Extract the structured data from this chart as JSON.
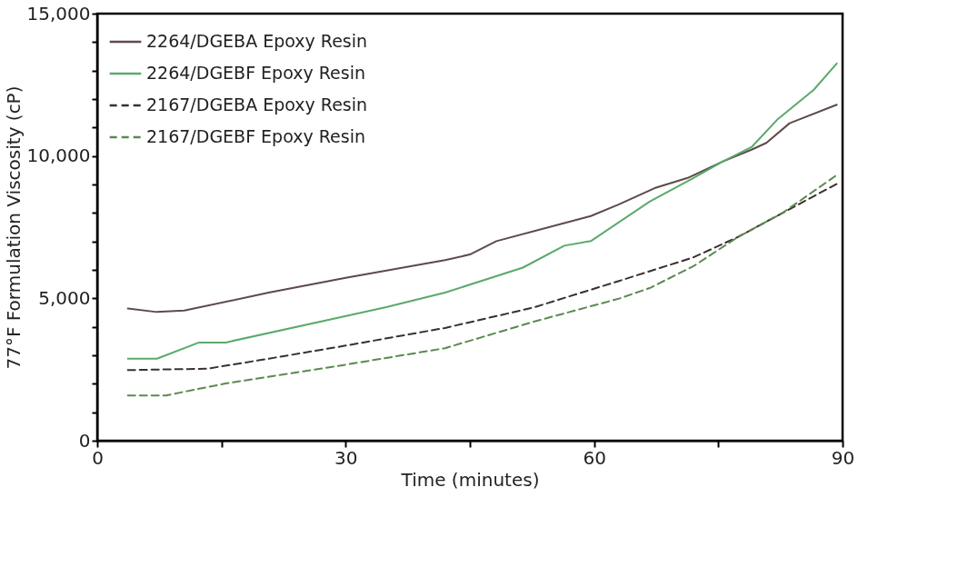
{
  "chart_data": {
    "type": "line",
    "xlabel": "Time (minutes)",
    "ylabel": "77°F Formulation Viscosity (cP)",
    "xlim": [
      0,
      90
    ],
    "ylim": [
      0,
      15000
    ],
    "xticks": [
      0,
      {
        "value": 15,
        "label": null
      },
      30,
      {
        "value": 45,
        "label": null
      },
      60,
      {
        "value": 75,
        "label": null
      },
      90
    ],
    "yticks": [
      0,
      {
        "value": 1000,
        "label": null
      },
      {
        "value": 2000,
        "label": null
      },
      {
        "value": 3000,
        "label": null
      },
      {
        "value": 4000,
        "label": null
      },
      {
        "value": 5000,
        "label": "5,000"
      },
      {
        "value": 6000,
        "label": null
      },
      {
        "value": 7000,
        "label": null
      },
      {
        "value": 8000,
        "label": null
      },
      {
        "value": 9000,
        "label": null
      },
      {
        "value": 10000,
        "label": "10,000"
      },
      {
        "value": 11000,
        "label": null
      },
      {
        "value": 12000,
        "label": null
      },
      {
        "value": 13000,
        "label": null
      },
      {
        "value": 14000,
        "label": null
      },
      {
        "value": 15000,
        "label": "15,000"
      }
    ],
    "grid": false,
    "legend": "top left",
    "series": [
      {
        "name": "2264/DGEBA Epoxy Resin",
        "color": "#5e4a4a",
        "line_style": "solid",
        "x": [
          3.7,
          7.2,
          10.5,
          20.7,
          30,
          42,
          45,
          48.2,
          59.6,
          63,
          67.3,
          71.3,
          75.5,
          79,
          80.8,
          83.6,
          89.3
        ],
        "values": [
          4640,
          4520,
          4570,
          5200,
          5720,
          6340,
          6540,
          7010,
          7890,
          8300,
          8870,
          9230,
          9800,
          10220,
          10460,
          11150,
          11800
        ]
      },
      {
        "name": "2264/DGEBF Epoxy Resin",
        "color": "#5aaa6a",
        "line_style": "solid",
        "x": [
          3.7,
          7.2,
          12.3,
          15.5,
          29.3,
          34.9,
          42,
          51.4,
          56.4,
          59.6,
          66.7,
          72,
          75.5,
          79,
          82.2,
          86.5,
          89.3
        ],
        "values": [
          2880,
          2880,
          3450,
          3450,
          4330,
          4690,
          5200,
          6080,
          6850,
          7010,
          8400,
          9230,
          9800,
          10310,
          11300,
          12320,
          13250
        ]
      },
      {
        "name": "2167/DGEBA Epoxy Resin",
        "color": "#3a3030",
        "line_style": "dashed",
        "x": [
          3.7,
          13.3,
          20.7,
          30,
          42,
          52.7,
          63,
          72,
          77.4,
          82.7,
          89.3
        ],
        "values": [
          2480,
          2530,
          2880,
          3340,
          3960,
          4680,
          5610,
          6440,
          7160,
          7990,
          9020
        ]
      },
      {
        "name": "2167/DGEBF Epoxy Resin",
        "color": "#5a8a50",
        "line_style": "dashed",
        "x": [
          3.7,
          8.3,
          15.5,
          30,
          42,
          52.7,
          63,
          66.7,
          72,
          77.4,
          82.7,
          89.3
        ],
        "values": [
          1590,
          1590,
          2010,
          2670,
          3250,
          4180,
          4990,
          5360,
          6130,
          7160,
          7990,
          9330
        ]
      }
    ]
  }
}
